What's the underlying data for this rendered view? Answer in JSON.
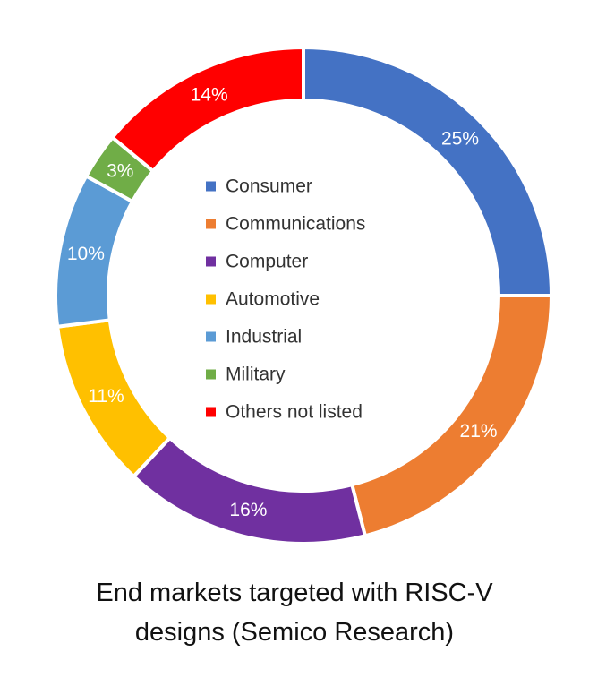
{
  "chart_data": {
    "type": "pie",
    "variant": "donut",
    "title": "",
    "slices": [
      {
        "name": "Consumer",
        "value": 25,
        "label": "25%",
        "color": "#4472C4"
      },
      {
        "name": "Communications",
        "value": 21,
        "label": "21%",
        "color": "#ED7D31"
      },
      {
        "name": "Computer",
        "value": 16,
        "label": "16%",
        "color": "#7030A0"
      },
      {
        "name": "Automotive",
        "value": 11,
        "label": "11%",
        "color": "#FFC000"
      },
      {
        "name": "Industrial",
        "value": 10,
        "label": "10%",
        "color": "#5B9BD5"
      },
      {
        "name": "Military",
        "value": 3,
        "label": "3%",
        "color": "#70AD47"
      },
      {
        "name": "Others not listed",
        "value": 14,
        "label": "14%",
        "color": "#FF0000"
      }
    ],
    "legend_position": "center"
  },
  "caption": {
    "line1": "End markets targeted with RISC-V",
    "line2": "designs (Semico Research)"
  }
}
